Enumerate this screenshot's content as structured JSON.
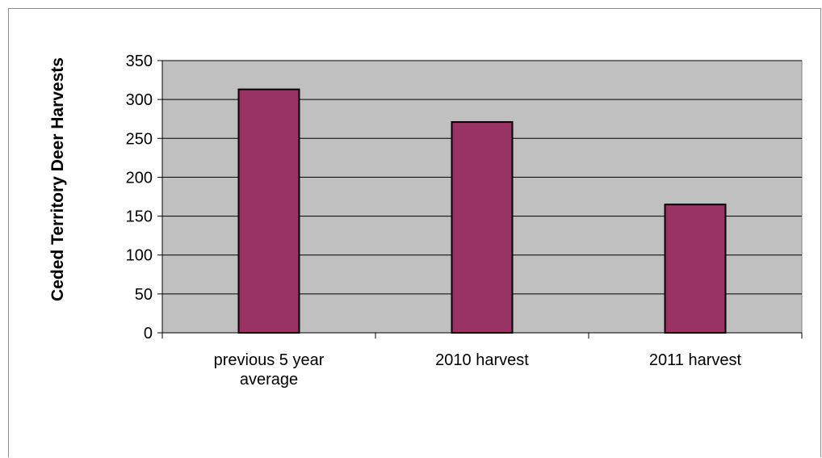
{
  "chart_data": {
    "type": "bar",
    "title": "",
    "xlabel": "",
    "ylabel": "Ceded Territory Deer Harvests",
    "categories": [
      [
        "previous 5 year",
        "average"
      ],
      [
        "2010 harvest"
      ],
      [
        "2011 harvest"
      ]
    ],
    "values": [
      313,
      271,
      165
    ],
    "ylim": [
      0,
      350
    ],
    "yticks": [
      0,
      50,
      100,
      150,
      200,
      250,
      300,
      350
    ],
    "grid": true,
    "legend": "none",
    "colors": {
      "bar": "#993366",
      "plot_bg": "#c0c0c0",
      "grid": "#000000"
    }
  }
}
